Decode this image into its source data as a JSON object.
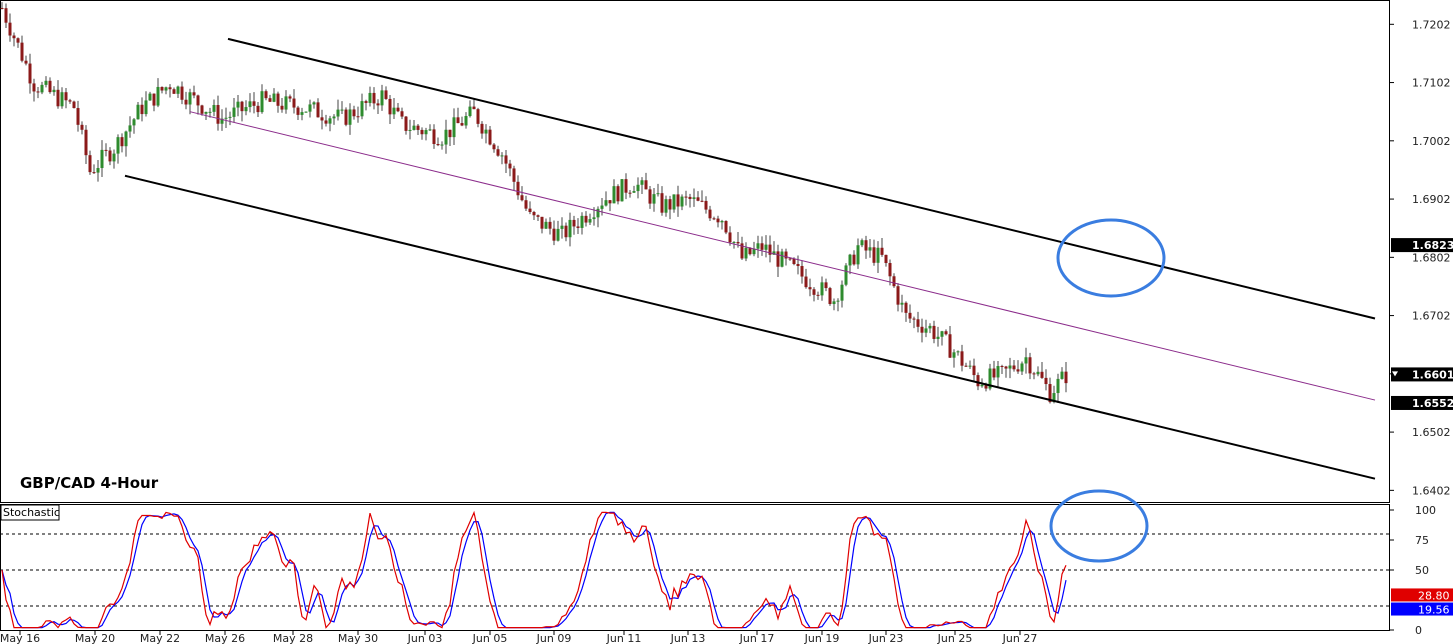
{
  "chart_data": {
    "type": "candlestick",
    "title": "GBP/CAD 4-Hour",
    "x_ticks": [
      "May 16",
      "May 20",
      "May 22",
      "May 26",
      "May 28",
      "May 30",
      "Jun 03",
      "Jun 05",
      "Jun 09",
      "Jun 11",
      "Jun 13",
      "Jun 17",
      "Jun 19",
      "Jun 23",
      "Jun 25",
      "Jun 27"
    ],
    "y_ticks": [
      "1.7202",
      "1.7102",
      "1.7002",
      "1.6902",
      "1.6802",
      "1.6702",
      "1.6602",
      "1.6502",
      "1.6402"
    ],
    "y_range": [
      1.6382,
      1.7242
    ],
    "price_tags": [
      {
        "value": "1.6823",
        "style": "box"
      },
      {
        "value": "1.6601",
        "style": "marker"
      },
      {
        "value": "1.6552",
        "style": "box"
      }
    ],
    "anchors": [
      [
        0,
        1.723
      ],
      [
        8,
        1.71
      ],
      [
        18,
        1.706
      ],
      [
        22,
        1.695
      ],
      [
        28,
        1.699
      ],
      [
        35,
        1.706
      ],
      [
        42,
        1.71
      ],
      [
        55,
        1.704
      ],
      [
        65,
        1.707
      ],
      [
        75,
        1.706
      ],
      [
        85,
        1.704
      ],
      [
        95,
        1.708
      ],
      [
        100,
        1.703
      ],
      [
        110,
        1.701
      ],
      [
        118,
        1.705
      ],
      [
        125,
        1.698
      ],
      [
        132,
        1.687
      ],
      [
        140,
        1.684
      ],
      [
        150,
        1.69
      ],
      [
        158,
        1.693
      ],
      [
        165,
        1.689
      ],
      [
        172,
        1.69
      ],
      [
        180,
        1.687
      ],
      [
        185,
        1.68
      ],
      [
        190,
        1.682
      ],
      [
        196,
        1.679
      ],
      [
        202,
        1.676
      ],
      [
        208,
        1.673
      ],
      [
        214,
        1.682
      ],
      [
        220,
        1.68
      ],
      [
        226,
        1.67
      ],
      [
        232,
        1.668
      ],
      [
        238,
        1.664
      ],
      [
        244,
        1.659
      ],
      [
        250,
        1.66
      ],
      [
        256,
        1.663
      ],
      [
        262,
        1.657
      ],
      [
        266,
        1.66
      ]
    ],
    "channel_lines": {
      "upper": [
        [
          228,
          1.7177
        ],
        [
          1375,
          1.6697
        ]
      ],
      "middle": [
        [
          190,
          1.7052
        ],
        [
          1375,
          1.6557
        ]
      ],
      "lower": [
        [
          125,
          1.6942
        ],
        [
          1375,
          1.6422
        ]
      ]
    },
    "stochastic": {
      "label": "Stochastic",
      "y_ticks": [
        "100",
        "75",
        "50",
        "0"
      ],
      "levels": [
        80,
        50,
        20
      ],
      "last_values": {
        "main": "28.80",
        "signal": "19.56"
      },
      "main_color": "#e00000",
      "signal_color": "#0000ff"
    },
    "highlight_circles": 2,
    "colors": {
      "bull": "#2e8b2e",
      "bear": "#8b1a1a",
      "channel": "#000000",
      "midline": "#8b2c8b",
      "circle": "#3a7de0"
    }
  }
}
